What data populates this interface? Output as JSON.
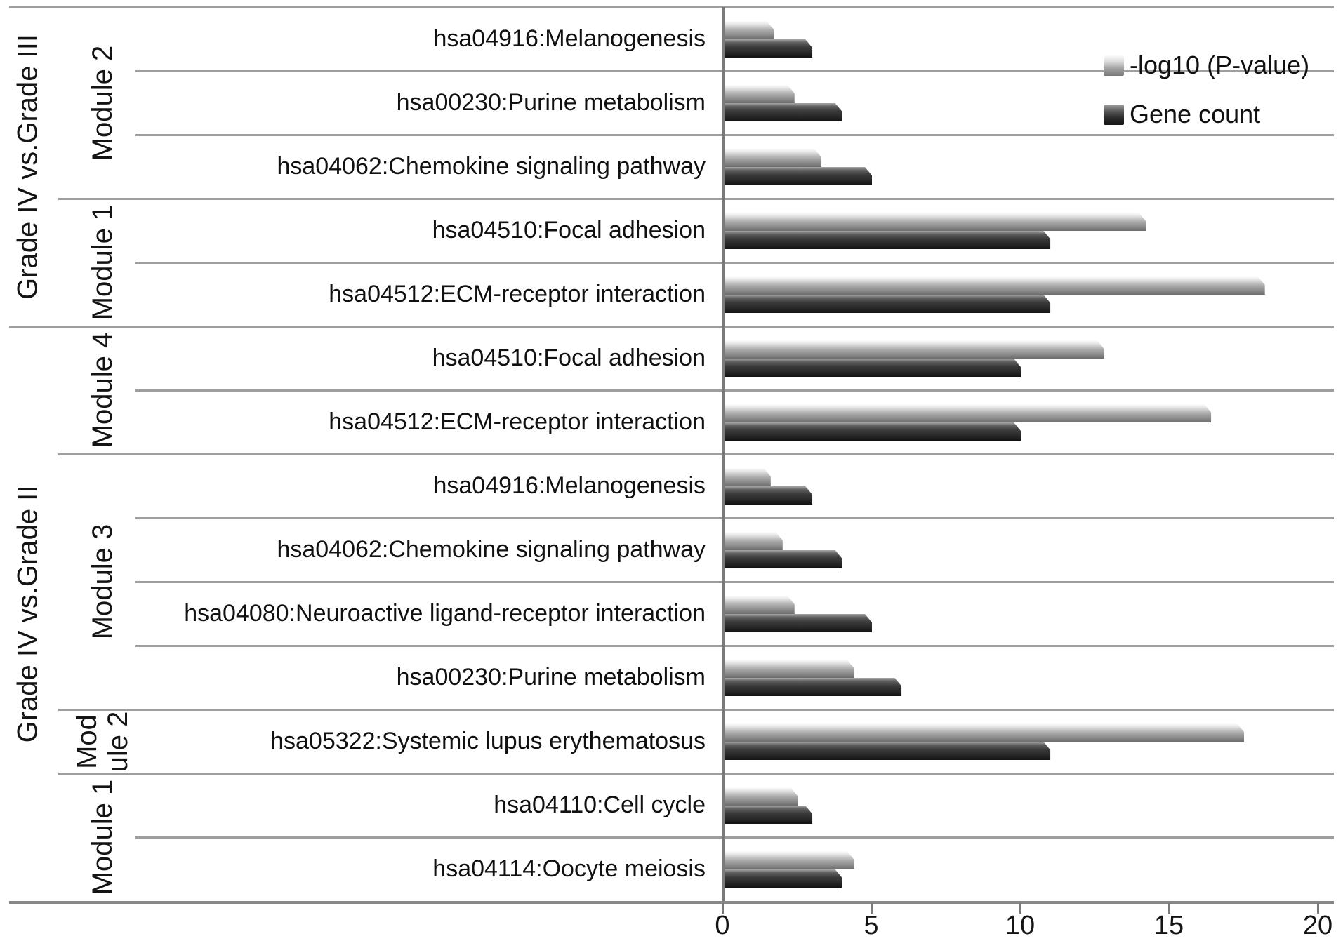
{
  "chart_data": {
    "type": "bar",
    "orientation": "horizontal",
    "title": "",
    "xlabel": "",
    "ylabel": "",
    "xlim": [
      0,
      20
    ],
    "x_ticks": [
      0,
      5,
      10,
      15,
      20
    ],
    "grid": "category separator lines, no value gridlines",
    "legend_position": "top-right",
    "legend": [
      {
        "key": "log10p",
        "label": "-log10 (P-value)",
        "swatch": "light-gray"
      },
      {
        "key": "gene_count",
        "label": "Gene count",
        "swatch": "dark-gray"
      }
    ],
    "series_colors": {
      "log10p": "#b5b5b5",
      "gene_count": "#2e2e2e"
    },
    "groups": [
      {
        "label": "Grade IV vs.Grade III",
        "modules": [
          {
            "label": "Module 2",
            "label_lines": [
              "Module 2"
            ],
            "rows": [
              {
                "pathway": "hsa04916:Melanogenesis",
                "log10p": 1.7,
                "gene_count": 3
              },
              {
                "pathway": "hsa00230:Purine metabolism",
                "log10p": 2.4,
                "gene_count": 4
              },
              {
                "pathway": "hsa04062:Chemokine signaling pathway",
                "log10p": 3.3,
                "gene_count": 5
              }
            ]
          },
          {
            "label": "Module 1",
            "label_lines": [
              "Module 1"
            ],
            "rows": [
              {
                "pathway": "hsa04510:Focal adhesion",
                "log10p": 14.2,
                "gene_count": 11
              },
              {
                "pathway": "hsa04512:ECM-receptor interaction",
                "log10p": 18.2,
                "gene_count": 11
              }
            ]
          }
        ]
      },
      {
        "label": "Grade IV vs.Grade II",
        "modules": [
          {
            "label": "Module 4",
            "label_lines": [
              "Module 4"
            ],
            "rows": [
              {
                "pathway": "hsa04510:Focal adhesion",
                "log10p": 12.8,
                "gene_count": 10
              },
              {
                "pathway": "hsa04512:ECM-receptor interaction",
                "log10p": 16.4,
                "gene_count": 10
              }
            ]
          },
          {
            "label": "Module 3",
            "label_lines": [
              "Module 3"
            ],
            "rows": [
              {
                "pathway": "hsa04916:Melanogenesis",
                "log10p": 1.6,
                "gene_count": 3
              },
              {
                "pathway": "hsa04062:Chemokine signaling pathway",
                "log10p": 2.0,
                "gene_count": 4
              },
              {
                "pathway": "hsa04080:Neuroactive ligand-receptor interaction",
                "log10p": 2.4,
                "gene_count": 5
              },
              {
                "pathway": "hsa00230:Purine metabolism",
                "log10p": 4.4,
                "gene_count": 6
              }
            ]
          },
          {
            "label": "Module 2",
            "label_lines": [
              "Mod",
              "ule 2"
            ],
            "rows": [
              {
                "pathway": "hsa05322:Systemic lupus erythematosus",
                "log10p": 17.5,
                "gene_count": 11
              }
            ]
          },
          {
            "label": "Module 1",
            "label_lines": [
              "Module 1"
            ],
            "rows": [
              {
                "pathway": "hsa04110:Cell cycle",
                "log10p": 2.5,
                "gene_count": 3
              },
              {
                "pathway": "hsa04114:Oocyte meiosis",
                "log10p": 4.4,
                "gene_count": 4
              }
            ]
          }
        ]
      }
    ]
  }
}
